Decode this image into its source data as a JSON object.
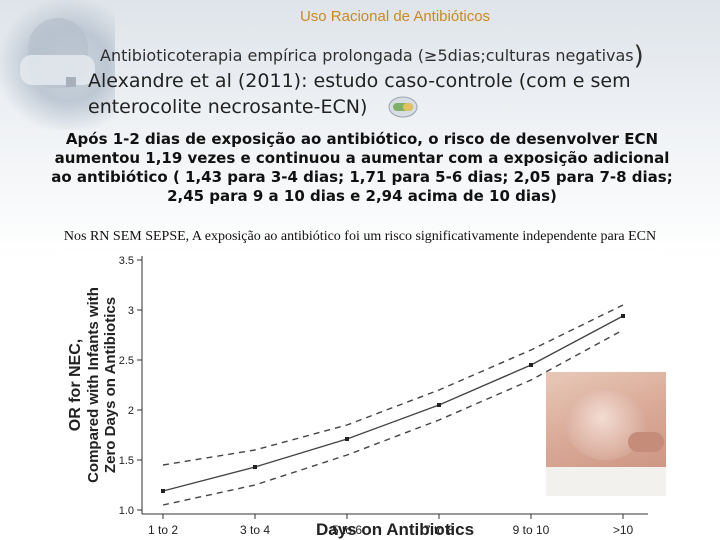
{
  "slide": {
    "title": "Uso Racional de Antibióticos",
    "subtitle": "Antibioticoterapia empírica prolongada (≥5dias;culturas negativas",
    "subtitle_paren": ")",
    "bullet": "Alexandre et al (2011): estudo caso-controle (com e sem enterocolite necrosante-ECN)",
    "paragraph": "Após 1-2 dias de exposição ao antibiótico, o risco de desenvolver ECN aumentou 1,19 vezes e continuou a aumentar com a exposição adicional ao antibiótico ( 1,43 para 3-4 dias; 1,71 para 5-6 dias; 2,05 para 7-8 dias; 2,45 para 9 a 10 dias e 2,94 acima de 10 dias)",
    "note": "Nos RN SEM SEPSE, A exposição ao antibiótico foi um risco significativamente independente para ECN"
  },
  "icons": {
    "bullet": "square-bullet-icon",
    "pill": "pill-icon",
    "photo": "surgeon-photo",
    "baby": "infant-abdomen-photo"
  },
  "colors": {
    "title": "#c98a1e",
    "text": "#222222",
    "line": "#333333"
  },
  "chart_data": {
    "type": "line",
    "xlabel": "Days on Antibiotics",
    "ylabel": "OR for NEC, Compared with Infants with Zero Days on Antibiotics",
    "categories": [
      "1 to 2",
      "3 to 4",
      "5 to 6",
      "7 to 8",
      "9 to 10",
      ">10"
    ],
    "series": [
      {
        "style": "solid",
        "values": [
          1.19,
          1.43,
          1.71,
          2.05,
          2.45,
          2.94
        ]
      },
      {
        "style": "dashed-upper",
        "values": [
          1.45,
          1.6,
          1.85,
          2.2,
          2.6,
          3.05
        ]
      },
      {
        "style": "dashed-lower",
        "values": [
          1.05,
          1.25,
          1.55,
          1.9,
          2.3,
          2.8
        ]
      }
    ],
    "yticks": [
      "1.0",
      "1.5",
      "2",
      "2.5",
      "3",
      "3.5"
    ],
    "ylim": [
      1.0,
      3.5
    ],
    "grid": false
  }
}
